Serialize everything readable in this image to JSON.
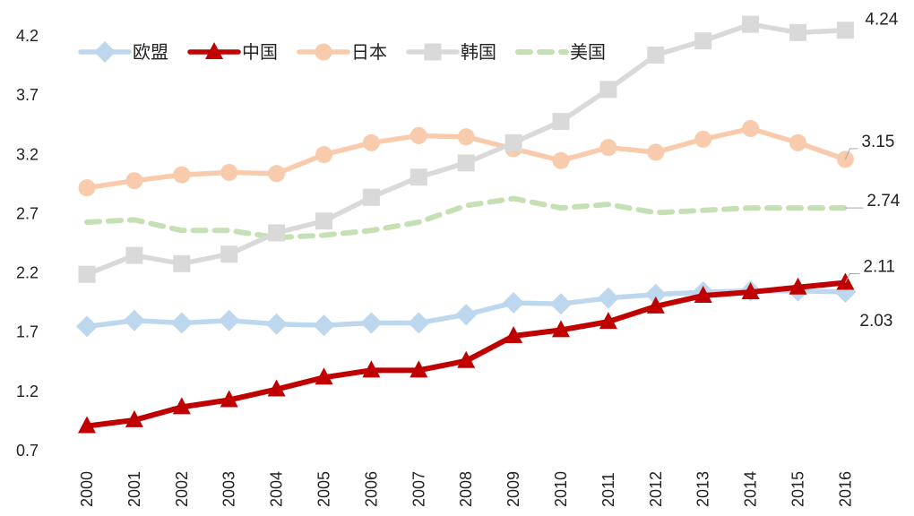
{
  "chart_data": {
    "type": "line",
    "x": [
      "2000",
      "2001",
      "2002",
      "2003",
      "2004",
      "2005",
      "2006",
      "2007",
      "2008",
      "2009",
      "2010",
      "2011",
      "2012",
      "2013",
      "2014",
      "2015",
      "2016"
    ],
    "y_ticks": [
      "0.7",
      "1.2",
      "1.7",
      "2.2",
      "2.7",
      "3.2",
      "3.7",
      "4.2"
    ],
    "ylim": [
      0.7,
      4.2
    ],
    "legend": {
      "position": "top-left"
    },
    "grid": false,
    "series": [
      {
        "name": "欧盟",
        "color": "#BDD7EE",
        "marker": "diamond",
        "dashed": false,
        "values": [
          1.74,
          1.79,
          1.77,
          1.79,
          1.76,
          1.75,
          1.77,
          1.77,
          1.84,
          1.94,
          1.93,
          1.98,
          2.01,
          2.03,
          2.04,
          2.04,
          2.03
        ]
      },
      {
        "name": "中国",
        "color": "#C00000",
        "marker": "triangle",
        "dashed": false,
        "values": [
          0.9,
          0.95,
          1.06,
          1.12,
          1.21,
          1.31,
          1.37,
          1.37,
          1.45,
          1.66,
          1.71,
          1.78,
          1.91,
          2.0,
          2.03,
          2.07,
          2.11
        ]
      },
      {
        "name": "日本",
        "color": "#F8CBAD",
        "marker": "circle",
        "dashed": false,
        "values": [
          2.91,
          2.97,
          3.02,
          3.04,
          3.03,
          3.19,
          3.29,
          3.35,
          3.34,
          3.24,
          3.14,
          3.25,
          3.21,
          3.32,
          3.41,
          3.29,
          3.15
        ]
      },
      {
        "name": "韩国",
        "color": "#D9D9D9",
        "marker": "square",
        "dashed": false,
        "values": [
          2.18,
          2.34,
          2.27,
          2.35,
          2.53,
          2.63,
          2.83,
          3.0,
          3.12,
          3.29,
          3.47,
          3.74,
          4.03,
          4.15,
          4.29,
          4.22,
          4.24
        ]
      },
      {
        "name": "美国",
        "color": "#C5E0B4",
        "marker": "none",
        "dashed": true,
        "values": [
          2.62,
          2.64,
          2.55,
          2.55,
          2.49,
          2.51,
          2.55,
          2.62,
          2.76,
          2.82,
          2.74,
          2.77,
          2.7,
          2.72,
          2.74,
          2.74,
          2.74
        ]
      }
    ],
    "data_labels": [
      {
        "series": "韩国",
        "text": "4.24"
      },
      {
        "series": "日本",
        "text": "3.15"
      },
      {
        "series": "美国",
        "text": "2.74"
      },
      {
        "series": "中国",
        "text": "2.11"
      },
      {
        "series": "欧盟",
        "text": "2.03"
      }
    ]
  }
}
